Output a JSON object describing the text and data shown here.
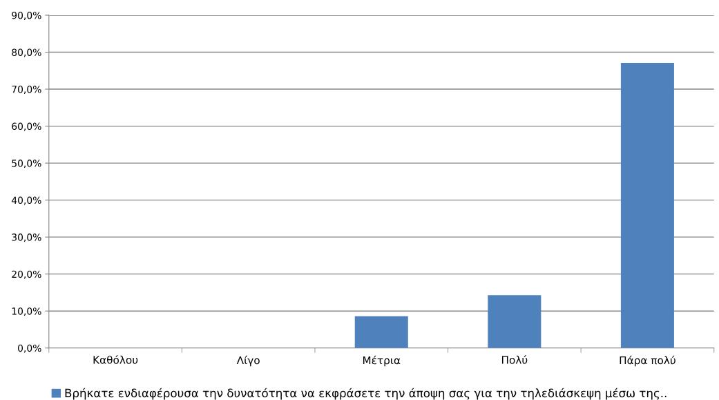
{
  "chart_data": {
    "type": "bar",
    "categories": [
      "Καθόλου",
      "Λίγο",
      "Μέτρια",
      "Πολύ",
      "Πάρα πολύ"
    ],
    "series": [
      {
        "name": "Βρήκατε ενδιαφέρουσα την δυνατότητα να εκφράσετε την άποψη σας για την τηλεδιάσκεψη μέσω της..",
        "color": "#4f81bd",
        "values": [
          0,
          0,
          8.6,
          14.3,
          77.1
        ]
      }
    ],
    "ylim": [
      0,
      90
    ],
    "yticks": [
      {
        "value": 0,
        "label": "0,0%"
      },
      {
        "value": 10,
        "label": "10,0%"
      },
      {
        "value": 20,
        "label": "20,0%"
      },
      {
        "value": 30,
        "label": "30,0%"
      },
      {
        "value": 40,
        "label": "40,0%"
      },
      {
        "value": 50,
        "label": "50,0%"
      },
      {
        "value": 60,
        "label": "60,0%"
      },
      {
        "value": 70,
        "label": "70,0%"
      },
      {
        "value": 80,
        "label": "80,0%"
      },
      {
        "value": 90,
        "label": "90,0%"
      }
    ],
    "grid": "y",
    "legend": "bottom"
  }
}
